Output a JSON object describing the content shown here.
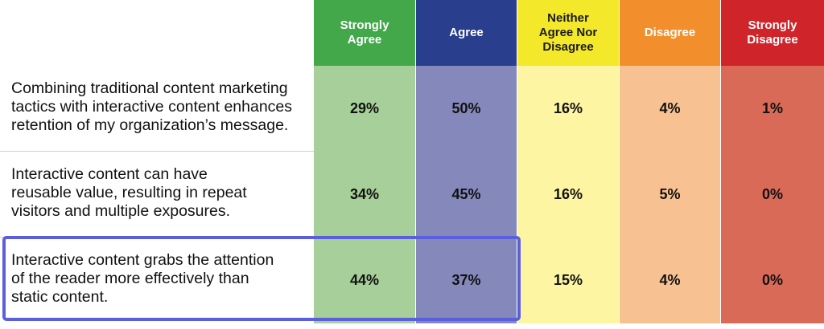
{
  "chart_data": {
    "type": "table",
    "columns": [
      {
        "label": "Strongly\nAgree",
        "header_color": "#43a84a",
        "cell_color": "#a6cf99",
        "dark_text": false
      },
      {
        "label": "Agree",
        "header_color": "#293e8d",
        "cell_color": "#8588bb",
        "dark_text": false
      },
      {
        "label": "Neither\nAgree Nor\nDisagree",
        "header_color": "#f4e82a",
        "cell_color": "#fdf5a2",
        "dark_text": true
      },
      {
        "label": "Disagree",
        "header_color": "#f28f2c",
        "cell_color": "#f7c192",
        "dark_text": false
      },
      {
        "label": "Strongly\nDisagree",
        "header_color": "#d0242b",
        "cell_color": "#d96a58",
        "dark_text": false
      }
    ],
    "rows": [
      {
        "statement": "Combining traditional content marketing\ntactics with interactive content enhances\nretention of my organization’s message.",
        "values": [
          "29%",
          "50%",
          "16%",
          "4%",
          "1%"
        ]
      },
      {
        "statement": "Interactive content can have\nreusable value, resulting in repeat\nvisitors and multiple exposures.",
        "values": [
          "34%",
          "45%",
          "16%",
          "5%",
          "0%"
        ]
      },
      {
        "statement": "Interactive content grabs the attention\nof the reader more effectively than\nstatic content.",
        "values": [
          "44%",
          "37%",
          "15%",
          "4%",
          "0%"
        ]
      }
    ],
    "highlighted_row": 2,
    "highlight_color": "#5b5fdb"
  }
}
